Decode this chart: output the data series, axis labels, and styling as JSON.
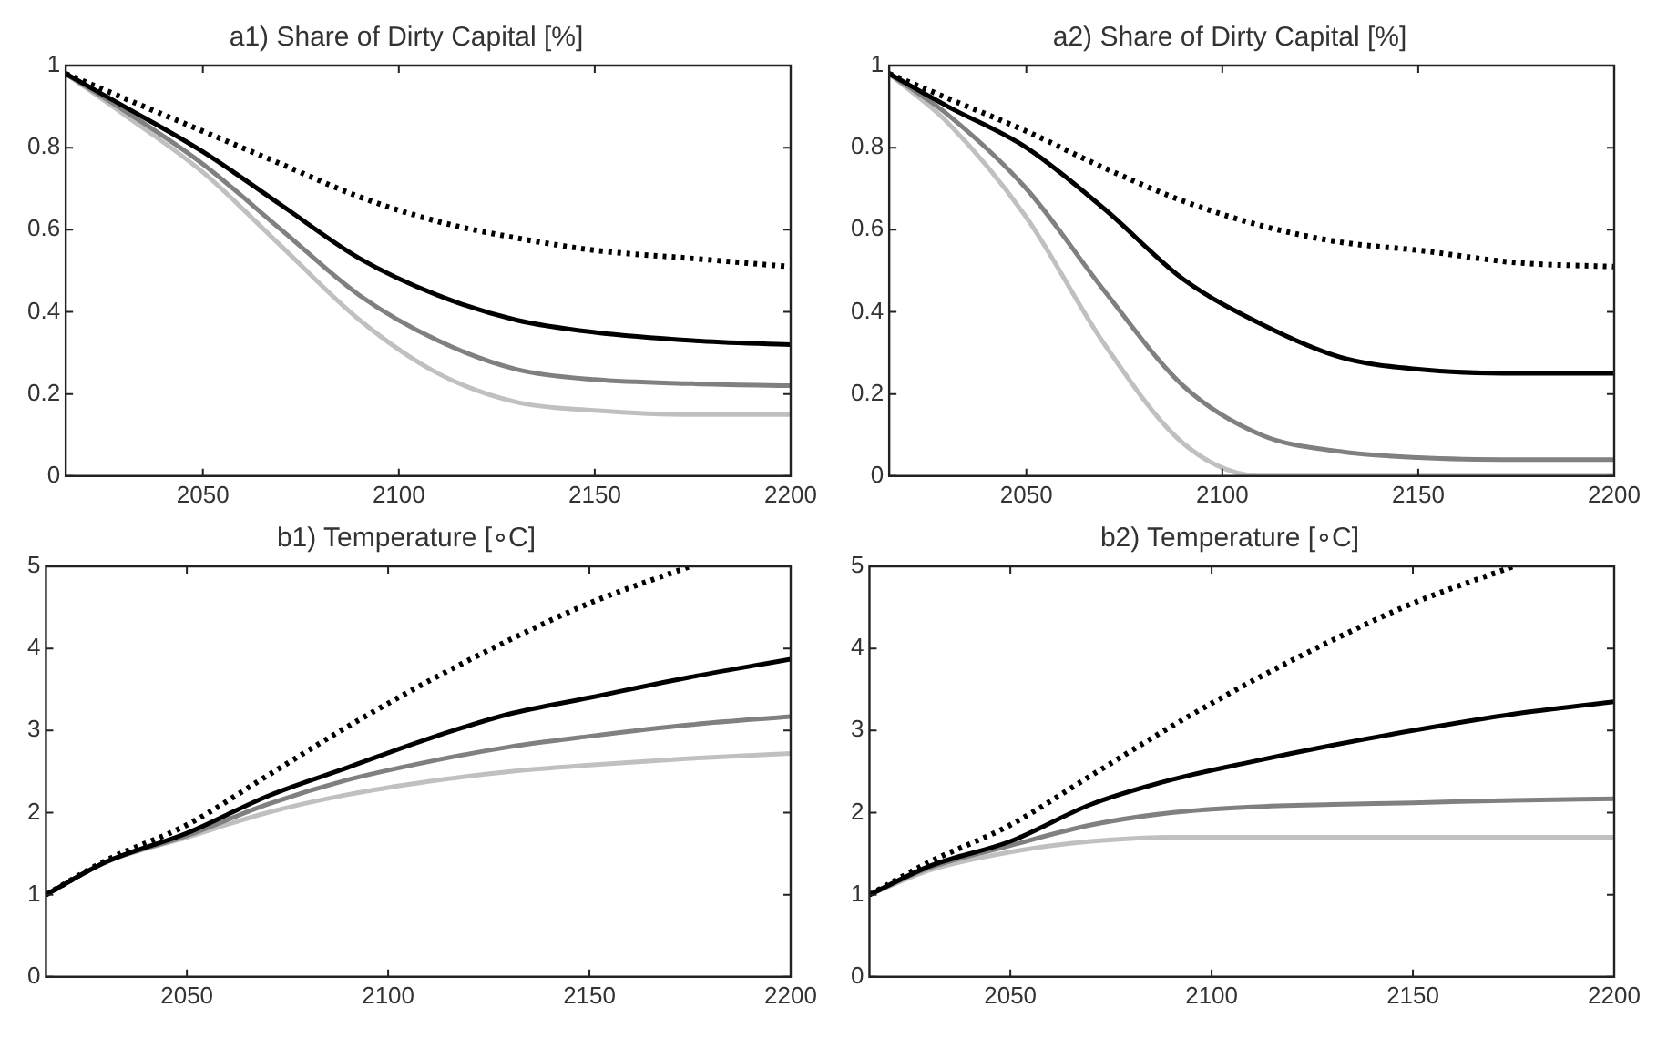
{
  "chart_data": [
    {
      "type": "line",
      "title": "a1) Share of Dirty Capital [%]",
      "xlim": [
        2015,
        2200
      ],
      "xticks": [
        2050,
        2100,
        2150,
        2200
      ],
      "ylim": [
        0,
        1
      ],
      "yticks": [
        0,
        0.2,
        0.4,
        0.6,
        0.8,
        1
      ],
      "grid": false,
      "legend": false,
      "marker": "none",
      "x": [
        2015,
        2030,
        2050,
        2070,
        2090,
        2110,
        2130,
        2150,
        2175,
        2200
      ],
      "series": [
        {
          "color": "#000000",
          "line_style": "dotted",
          "values": [
            0.98,
            0.92,
            0.84,
            0.76,
            0.68,
            0.62,
            0.58,
            0.55,
            0.53,
            0.51
          ]
        },
        {
          "color": "#000000",
          "line_style": "solid",
          "values": [
            0.98,
            0.9,
            0.79,
            0.66,
            0.53,
            0.44,
            0.38,
            0.35,
            0.33,
            0.32
          ]
        },
        {
          "color": "#808080",
          "line_style": "solid",
          "values": [
            0.98,
            0.89,
            0.76,
            0.6,
            0.44,
            0.33,
            0.26,
            0.235,
            0.225,
            0.22
          ]
        },
        {
          "color": "#c0c0c0",
          "line_style": "solid",
          "values": [
            0.98,
            0.88,
            0.74,
            0.56,
            0.38,
            0.25,
            0.18,
            0.16,
            0.15,
            0.15
          ]
        }
      ]
    },
    {
      "type": "line",
      "title": "a2) Share of Dirty Capital [%]",
      "xlim": [
        2015,
        2200
      ],
      "xticks": [
        2050,
        2100,
        2150,
        2200
      ],
      "ylim": [
        0,
        1
      ],
      "yticks": [
        0,
        0.2,
        0.4,
        0.6,
        0.8,
        1
      ],
      "grid": false,
      "legend": false,
      "marker": "none",
      "x": [
        2015,
        2030,
        2050,
        2070,
        2090,
        2110,
        2130,
        2150,
        2175,
        2200
      ],
      "series": [
        {
          "color": "#000000",
          "line_style": "dotted",
          "values": [
            0.98,
            0.92,
            0.84,
            0.75,
            0.67,
            0.61,
            0.57,
            0.55,
            0.52,
            0.51
          ]
        },
        {
          "color": "#000000",
          "line_style": "solid",
          "values": [
            0.98,
            0.9,
            0.8,
            0.65,
            0.48,
            0.37,
            0.29,
            0.26,
            0.25,
            0.25
          ]
        },
        {
          "color": "#808080",
          "line_style": "solid",
          "values": [
            0.98,
            0.88,
            0.7,
            0.45,
            0.22,
            0.1,
            0.06,
            0.045,
            0.04,
            0.04
          ]
        },
        {
          "color": "#c0c0c0",
          "line_style": "solid",
          "values": [
            0.98,
            0.86,
            0.63,
            0.32,
            0.08,
            0,
            0,
            0,
            0,
            0
          ]
        }
      ]
    },
    {
      "type": "line",
      "title": "b1) Temperature [∘C]",
      "xlim": [
        2015,
        2200
      ],
      "xticks": [
        2050,
        2100,
        2150,
        2200
      ],
      "ylim": [
        0,
        5
      ],
      "yticks": [
        0,
        1,
        2,
        3,
        4,
        5
      ],
      "grid": false,
      "legend": false,
      "marker": "none",
      "x": [
        2015,
        2030,
        2050,
        2070,
        2090,
        2110,
        2130,
        2150,
        2175,
        2200
      ],
      "series": [
        {
          "color": "#000000",
          "line_style": "dotted",
          "x": [
            2015,
            2030,
            2050,
            2070,
            2090,
            2110,
            2130,
            2150,
            2175
          ],
          "values": [
            1,
            1.42,
            1.85,
            2.45,
            3.05,
            3.6,
            4.1,
            4.55,
            5
          ]
        },
        {
          "color": "#000000",
          "line_style": "solid",
          "values": [
            1,
            1.4,
            1.75,
            2.2,
            2.55,
            2.9,
            3.2,
            3.4,
            3.65,
            3.87
          ]
        },
        {
          "color": "#808080",
          "line_style": "solid",
          "values": [
            1,
            1.4,
            1.72,
            2.1,
            2.4,
            2.62,
            2.8,
            2.93,
            3.07,
            3.17
          ]
        },
        {
          "color": "#c0c0c0",
          "line_style": "solid",
          "values": [
            1,
            1.4,
            1.7,
            2,
            2.22,
            2.38,
            2.5,
            2.58,
            2.66,
            2.72
          ]
        }
      ]
    },
    {
      "type": "line",
      "title": "b2) Temperature [∘C]",
      "xlim": [
        2015,
        2200
      ],
      "xticks": [
        2050,
        2100,
        2150,
        2200
      ],
      "ylim": [
        0,
        5
      ],
      "yticks": [
        0,
        1,
        2,
        3,
        4,
        5
      ],
      "grid": false,
      "legend": false,
      "marker": "none",
      "x": [
        2015,
        2030,
        2050,
        2070,
        2090,
        2110,
        2130,
        2150,
        2175,
        2200
      ],
      "series": [
        {
          "color": "#000000",
          "line_style": "dotted",
          "x": [
            2015,
            2030,
            2050,
            2070,
            2090,
            2110,
            2130,
            2150,
            2175
          ],
          "values": [
            1,
            1.4,
            1.85,
            2.45,
            3.05,
            3.6,
            4.1,
            4.55,
            5
          ]
        },
        {
          "color": "#000000",
          "line_style": "solid",
          "values": [
            1,
            1.35,
            1.65,
            2.1,
            2.4,
            2.62,
            2.82,
            3,
            3.2,
            3.35
          ]
        },
        {
          "color": "#808080",
          "line_style": "solid",
          "values": [
            1,
            1.33,
            1.6,
            1.85,
            2,
            2.07,
            2.1,
            2.12,
            2.15,
            2.17
          ]
        },
        {
          "color": "#c0c0c0",
          "line_style": "solid",
          "values": [
            1,
            1.3,
            1.52,
            1.65,
            1.7,
            1.7,
            1.7,
            1.7,
            1.7,
            1.7
          ]
        }
      ]
    }
  ]
}
